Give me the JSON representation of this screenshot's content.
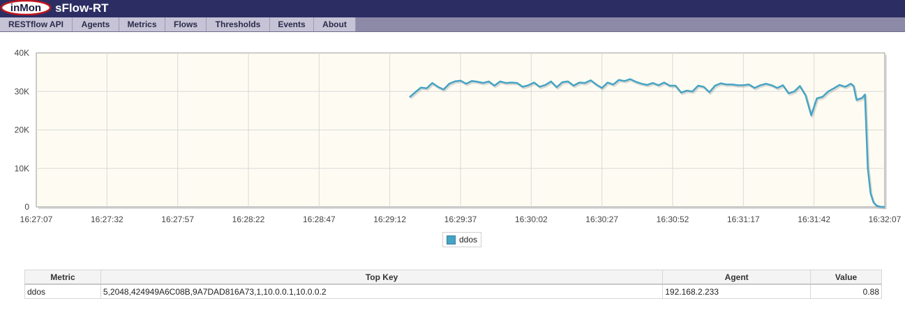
{
  "header": {
    "logo_text": "inMon",
    "app_title": "sFlow-RT"
  },
  "nav": {
    "items": [
      {
        "label": "RESTflow API"
      },
      {
        "label": "Agents"
      },
      {
        "label": "Metrics"
      },
      {
        "label": "Flows"
      },
      {
        "label": "Thresholds"
      },
      {
        "label": "Events"
      },
      {
        "label": "About"
      }
    ]
  },
  "colors": {
    "header_bg": "#2c2e63",
    "plot_bg": "#fefcf2",
    "series_line": "#45a3c4",
    "series_shadow": "#9a9a9a"
  },
  "chart_data": {
    "type": "line",
    "title": "",
    "xlabel": "",
    "ylabel": "",
    "ylim": [
      0,
      40000
    ],
    "y_ticks": [
      0,
      10000,
      20000,
      30000,
      40000
    ],
    "y_tick_labels": [
      "0",
      "10K",
      "20K",
      "30K",
      "40K"
    ],
    "x_ticks": [
      "16:27:07",
      "16:27:32",
      "16:27:57",
      "16:28:22",
      "16:28:47",
      "16:29:12",
      "16:29:37",
      "16:30:02",
      "16:30:27",
      "16:30:52",
      "16:31:17",
      "16:31:42",
      "16:32:07"
    ],
    "grid": true,
    "legend_position": "bottom-center",
    "series": [
      {
        "name": "ddos",
        "points": [
          [
            "16:29:19",
            28500
          ],
          [
            "16:29:21",
            29800
          ],
          [
            "16:29:23",
            31000
          ],
          [
            "16:29:25",
            30800
          ],
          [
            "16:29:27",
            32200
          ],
          [
            "16:29:29",
            31200
          ],
          [
            "16:29:31",
            30500
          ],
          [
            "16:29:33",
            32000
          ],
          [
            "16:29:35",
            32600
          ],
          [
            "16:29:37",
            32800
          ],
          [
            "16:29:39",
            32000
          ],
          [
            "16:29:41",
            32700
          ],
          [
            "16:29:43",
            32500
          ],
          [
            "16:29:45",
            32200
          ],
          [
            "16:29:47",
            32600
          ],
          [
            "16:29:49",
            31500
          ],
          [
            "16:29:51",
            32600
          ],
          [
            "16:29:53",
            32200
          ],
          [
            "16:29:55",
            32300
          ],
          [
            "16:29:57",
            32200
          ],
          [
            "16:29:59",
            31200
          ],
          [
            "16:30:01",
            31600
          ],
          [
            "16:30:03",
            32300
          ],
          [
            "16:30:05",
            31200
          ],
          [
            "16:30:07",
            31700
          ],
          [
            "16:30:09",
            32600
          ],
          [
            "16:30:11",
            31100
          ],
          [
            "16:30:13",
            32400
          ],
          [
            "16:30:15",
            32600
          ],
          [
            "16:30:17",
            31500
          ],
          [
            "16:30:19",
            32300
          ],
          [
            "16:30:21",
            32200
          ],
          [
            "16:30:23",
            32900
          ],
          [
            "16:30:25",
            31800
          ],
          [
            "16:30:27",
            30900
          ],
          [
            "16:30:29",
            32300
          ],
          [
            "16:30:31",
            31800
          ],
          [
            "16:30:33",
            33000
          ],
          [
            "16:30:35",
            32700
          ],
          [
            "16:30:37",
            33200
          ],
          [
            "16:30:39",
            32500
          ],
          [
            "16:30:41",
            32000
          ],
          [
            "16:30:43",
            31700
          ],
          [
            "16:30:45",
            32200
          ],
          [
            "16:30:47",
            31600
          ],
          [
            "16:30:49",
            32300
          ],
          [
            "16:30:51",
            31500
          ],
          [
            "16:30:53",
            31500
          ],
          [
            "16:30:55",
            29700
          ],
          [
            "16:30:57",
            30200
          ],
          [
            "16:30:59",
            30000
          ],
          [
            "16:31:01",
            31500
          ],
          [
            "16:31:03",
            31200
          ],
          [
            "16:31:05",
            29800
          ],
          [
            "16:31:07",
            31500
          ],
          [
            "16:31:09",
            32100
          ],
          [
            "16:31:11",
            31800
          ],
          [
            "16:31:13",
            31800
          ],
          [
            "16:31:15",
            31600
          ],
          [
            "16:31:17",
            31600
          ],
          [
            "16:31:19",
            31800
          ],
          [
            "16:31:21",
            30900
          ],
          [
            "16:31:23",
            31600
          ],
          [
            "16:31:25",
            32000
          ],
          [
            "16:31:27",
            31600
          ],
          [
            "16:31:29",
            30900
          ],
          [
            "16:31:31",
            31600
          ],
          [
            "16:31:33",
            29500
          ],
          [
            "16:31:35",
            30000
          ],
          [
            "16:31:37",
            31400
          ],
          [
            "16:31:39",
            29000
          ],
          [
            "16:31:41",
            23800
          ],
          [
            "16:31:43",
            28200
          ],
          [
            "16:31:45",
            28600
          ],
          [
            "16:31:47",
            30000
          ],
          [
            "16:31:49",
            30800
          ],
          [
            "16:31:51",
            31700
          ],
          [
            "16:31:53",
            31200
          ],
          [
            "16:31:55",
            32000
          ],
          [
            "16:31:56",
            31400
          ],
          [
            "16:31:57",
            27800
          ],
          [
            "16:31:59",
            28300
          ],
          [
            "16:32:00",
            29200
          ],
          [
            "16:32:01",
            10000
          ],
          [
            "16:32:02",
            3500
          ],
          [
            "16:32:03",
            1200
          ],
          [
            "16:32:04",
            400
          ],
          [
            "16:32:05",
            100
          ],
          [
            "16:32:06",
            0
          ],
          [
            "16:32:07",
            0
          ]
        ]
      }
    ]
  },
  "legend": {
    "items": [
      {
        "label": "ddos"
      }
    ]
  },
  "table": {
    "headers": [
      "Metric",
      "Top Key",
      "Agent",
      "Value"
    ],
    "rows": [
      [
        "ddos",
        "5,2048,424949A6C08B,9A7DAD816A73,1,10.0.0.1,10.0.0.2",
        "192.168.2.233",
        "0.88"
      ]
    ]
  }
}
